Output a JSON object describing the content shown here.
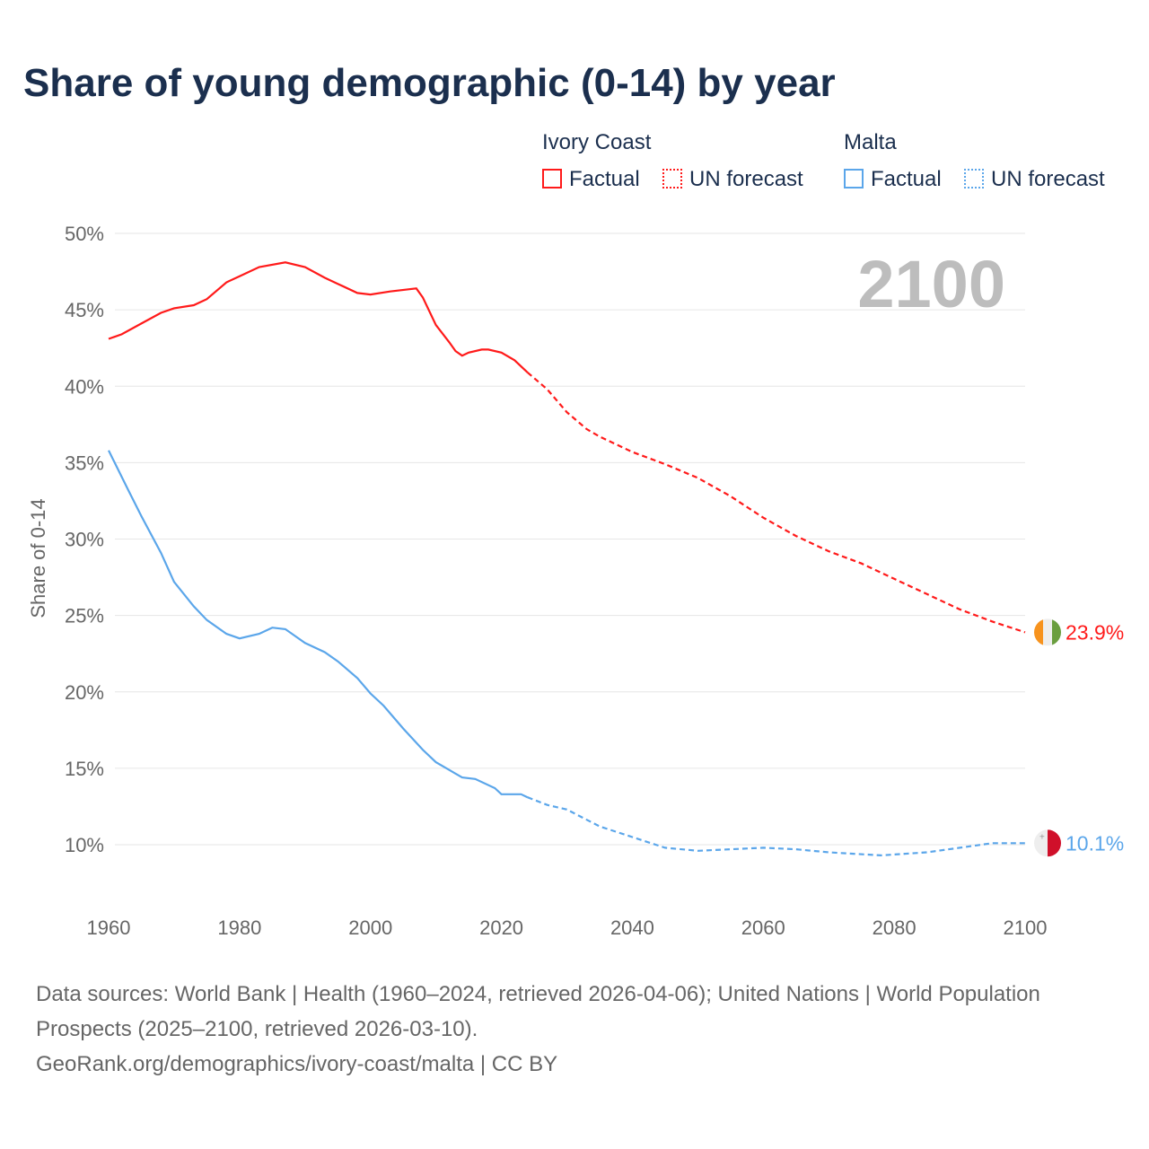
{
  "chart_data": {
    "type": "line",
    "title": "Share of young demographic (0-14) by year",
    "ylabel": "Share of 0-14",
    "xlabel": "",
    "xlim": [
      1960,
      2100
    ],
    "ylim": [
      10,
      50
    ],
    "x_ticks": [
      "1960",
      "1980",
      "2000",
      "2020",
      "2040",
      "2060",
      "2080",
      "2100"
    ],
    "y_ticks": [
      "10%",
      "15%",
      "20%",
      "25%",
      "30%",
      "35%",
      "40%",
      "45%",
      "50%"
    ],
    "year_watermark": "2100",
    "forecast_start": 2024,
    "legend": {
      "groups": [
        {
          "name": "Ivory Coast",
          "items": [
            "Factual",
            "UN forecast"
          ]
        },
        {
          "name": "Malta",
          "items": [
            "Factual",
            "UN forecast"
          ]
        }
      ],
      "placement": "top-right"
    },
    "series": [
      {
        "name": "Ivory Coast",
        "color": "#ff1a1a",
        "end_label": "23.9%",
        "points": [
          [
            1960,
            43.1
          ],
          [
            1962,
            43.4
          ],
          [
            1965,
            44.1
          ],
          [
            1968,
            44.8
          ],
          [
            1970,
            45.1
          ],
          [
            1973,
            45.3
          ],
          [
            1975,
            45.7
          ],
          [
            1978,
            46.8
          ],
          [
            1980,
            47.2
          ],
          [
            1983,
            47.8
          ],
          [
            1987,
            48.1
          ],
          [
            1990,
            47.8
          ],
          [
            1993,
            47.1
          ],
          [
            1995,
            46.7
          ],
          [
            1998,
            46.1
          ],
          [
            2000,
            46.0
          ],
          [
            2003,
            46.2
          ],
          [
            2007,
            46.4
          ],
          [
            2008,
            45.8
          ],
          [
            2010,
            44.0
          ],
          [
            2012,
            42.9
          ],
          [
            2013,
            42.3
          ],
          [
            2014,
            42.0
          ],
          [
            2015,
            42.2
          ],
          [
            2017,
            42.4
          ],
          [
            2018,
            42.4
          ],
          [
            2020,
            42.2
          ],
          [
            2022,
            41.7
          ],
          [
            2024,
            40.9
          ],
          [
            2027,
            39.8
          ],
          [
            2030,
            38.3
          ],
          [
            2033,
            37.2
          ],
          [
            2035,
            36.7
          ],
          [
            2040,
            35.7
          ],
          [
            2045,
            34.9
          ],
          [
            2050,
            34.0
          ],
          [
            2055,
            32.8
          ],
          [
            2060,
            31.4
          ],
          [
            2065,
            30.2
          ],
          [
            2070,
            29.2
          ],
          [
            2075,
            28.4
          ],
          [
            2080,
            27.4
          ],
          [
            2085,
            26.4
          ],
          [
            2090,
            25.4
          ],
          [
            2095,
            24.6
          ],
          [
            2100,
            23.9
          ]
        ]
      },
      {
        "name": "Malta",
        "color": "#5ba6ea",
        "end_label": "10.1%",
        "points": [
          [
            1960,
            35.8
          ],
          [
            1963,
            33.2
          ],
          [
            1965,
            31.5
          ],
          [
            1968,
            29.1
          ],
          [
            1970,
            27.2
          ],
          [
            1973,
            25.6
          ],
          [
            1975,
            24.7
          ],
          [
            1978,
            23.8
          ],
          [
            1980,
            23.5
          ],
          [
            1983,
            23.8
          ],
          [
            1985,
            24.2
          ],
          [
            1987,
            24.1
          ],
          [
            1990,
            23.2
          ],
          [
            1993,
            22.6
          ],
          [
            1995,
            22.0
          ],
          [
            1998,
            20.9
          ],
          [
            2000,
            19.9
          ],
          [
            2002,
            19.1
          ],
          [
            2005,
            17.6
          ],
          [
            2008,
            16.2
          ],
          [
            2010,
            15.4
          ],
          [
            2012,
            14.9
          ],
          [
            2014,
            14.4
          ],
          [
            2016,
            14.3
          ],
          [
            2019,
            13.7
          ],
          [
            2020,
            13.3
          ],
          [
            2023,
            13.3
          ],
          [
            2024,
            13.1
          ],
          [
            2027,
            12.6
          ],
          [
            2030,
            12.3
          ],
          [
            2035,
            11.2
          ],
          [
            2040,
            10.5
          ],
          [
            2045,
            9.8
          ],
          [
            2050,
            9.6
          ],
          [
            2055,
            9.7
          ],
          [
            2060,
            9.8
          ],
          [
            2065,
            9.7
          ],
          [
            2070,
            9.5
          ],
          [
            2078,
            9.3
          ],
          [
            2085,
            9.5
          ],
          [
            2090,
            9.8
          ],
          [
            2095,
            10.1
          ],
          [
            2100,
            10.1
          ]
        ]
      }
    ]
  },
  "footer": {
    "sources": "Data sources: World Bank | Health (1960–2024, retrieved 2026-04-06); United Nations | World Population Prospects (2025–2100, retrieved 2026-03-10).",
    "credit": "GeoRank.org/demographics/ivory-coast/malta | CC BY"
  }
}
